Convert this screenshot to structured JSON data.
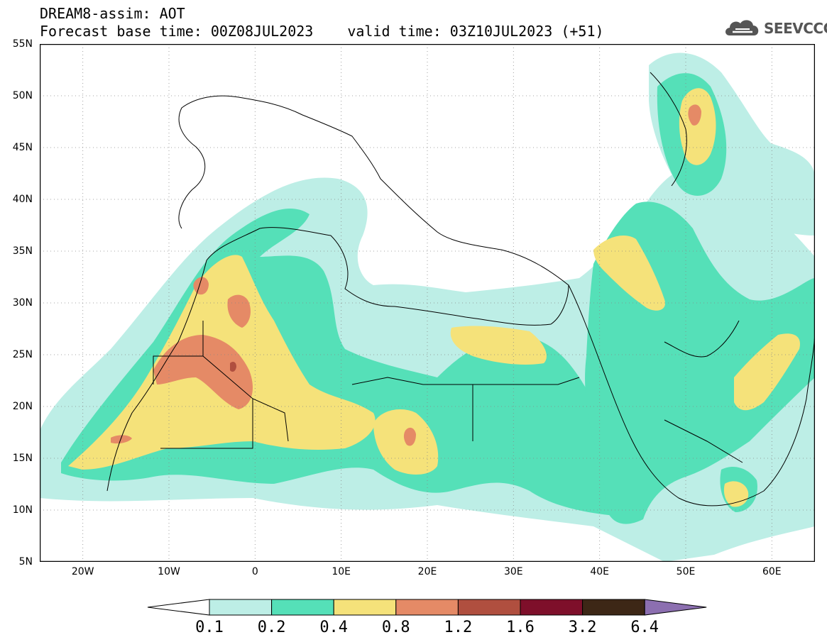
{
  "title": {
    "line1": "DREAM8-assim: AOT",
    "line2_base": "Forecast base time: 00Z08JUL2023",
    "line2_valid": "valid time: 03Z10JUL2023 (+51)"
  },
  "logo": {
    "text": "SEEVCCC",
    "icon": "cloud-icon",
    "color": "#555555"
  },
  "map": {
    "projection": "lat-lon",
    "lon_range": [
      -25,
      65
    ],
    "lat_range": [
      5,
      55
    ],
    "grid": "dotted",
    "lat_ticks": [
      "55N",
      "50N",
      "45N",
      "40N",
      "35N",
      "30N",
      "25N",
      "20N",
      "15N",
      "10N",
      "5N"
    ],
    "lon_ticks": [
      "20W",
      "10W",
      "0",
      "10E",
      "20E",
      "30E",
      "40E",
      "50E",
      "60E"
    ]
  },
  "colorbar": {
    "levels": [
      "0.1",
      "0.2",
      "0.4",
      "0.8",
      "1.2",
      "1.6",
      "3.2",
      "6.4"
    ],
    "colors": [
      "#ffffff",
      "#bdeee6",
      "#55e0b8",
      "#f5e27a",
      "#e58a66",
      "#b04f3f",
      "#7e0f2a",
      "#3d2716",
      "#8c6fb0"
    ]
  }
}
